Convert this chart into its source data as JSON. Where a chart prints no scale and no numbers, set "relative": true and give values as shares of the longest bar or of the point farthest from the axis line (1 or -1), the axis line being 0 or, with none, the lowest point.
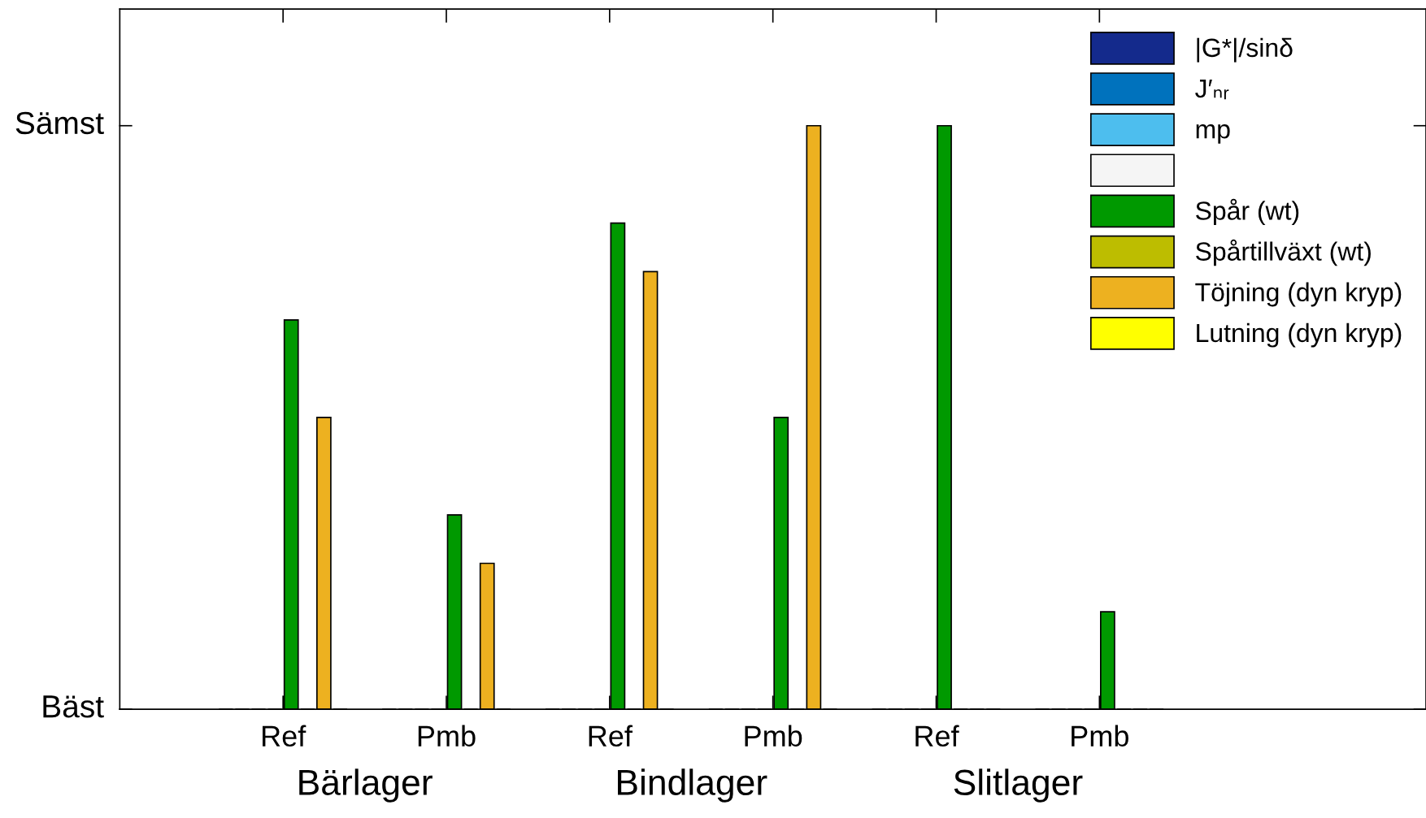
{
  "chart_data": {
    "type": "bar",
    "categories": [
      "Ref",
      "Pmb",
      "Ref",
      "Pmb",
      "Ref",
      "Pmb"
    ],
    "series": [
      {
        "name": "|G*|/sinδ",
        "color": "#142a8c",
        "values": [
          0,
          0,
          0,
          0,
          0,
          0
        ]
      },
      {
        "name": "J′ₙᵣ",
        "color": "#0072bd",
        "values": [
          0,
          0,
          0,
          0,
          0,
          0
        ]
      },
      {
        "name": "mp",
        "color": "#4dbeee",
        "values": [
          0,
          0,
          0,
          0,
          0,
          0
        ]
      },
      {
        "color": "#f5f5f5",
        "values": [
          0,
          0,
          0,
          0,
          0,
          0
        ]
      },
      {
        "name": "Spår (wt)",
        "color": "#009900",
        "values": [
          0.667,
          0.333,
          0.833,
          0.5,
          1,
          0.167
        ]
      },
      {
        "name": "Spårtillväxt (wt)",
        "color": "#bdbd00",
        "values": [
          0,
          0,
          0,
          0,
          0,
          0
        ]
      },
      {
        "name": "Töjning (dyn kryp)",
        "color": "#edb120",
        "values": [
          0.5,
          0.25,
          0.75,
          1,
          0,
          0
        ]
      },
      {
        "name": "Lutning (dyn kryp)",
        "color": "#ffff00",
        "values": [
          0,
          0,
          0,
          0,
          0,
          0
        ]
      }
    ],
    "relative": true,
    "annotations": [
      "Bärlager",
      "Bindlager",
      "Slitlager",
      "Bäst",
      "Sämst"
    ],
    "grid": false,
    "legend": "top right"
  }
}
